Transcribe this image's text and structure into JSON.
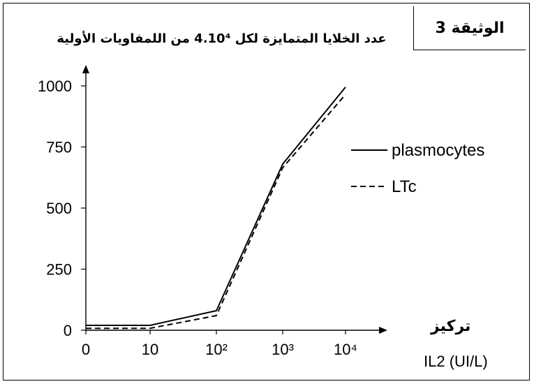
{
  "document_label": "الوثيقة 3",
  "chart_data": {
    "type": "line",
    "title": "",
    "ylabel": "عدد الخلايا المتمايزة لكل 4.10⁴ من اللمفاويات الأولية",
    "xlabel_ar": "تركيز",
    "xlabel_en": "IL2 (UI/L)",
    "x_categories": [
      "0",
      "10",
      "10²",
      "10³",
      "10⁴"
    ],
    "y_ticks": [
      0,
      250,
      500,
      750,
      1000
    ],
    "ylim": [
      0,
      1080
    ],
    "series": [
      {
        "name": "plasmocytes",
        "style": "solid",
        "x": [
          0,
          10,
          100,
          1000,
          10000
        ],
        "y": [
          20,
          20,
          80,
          680,
          995
        ]
      },
      {
        "name": "LTc",
        "style": "dashed",
        "x": [
          0,
          10,
          100,
          1000,
          10000
        ],
        "y": [
          8,
          8,
          60,
          665,
          965
        ]
      }
    ],
    "legend": {
      "position": "right",
      "entries": [
        "plasmocytes",
        "LTc"
      ]
    }
  }
}
